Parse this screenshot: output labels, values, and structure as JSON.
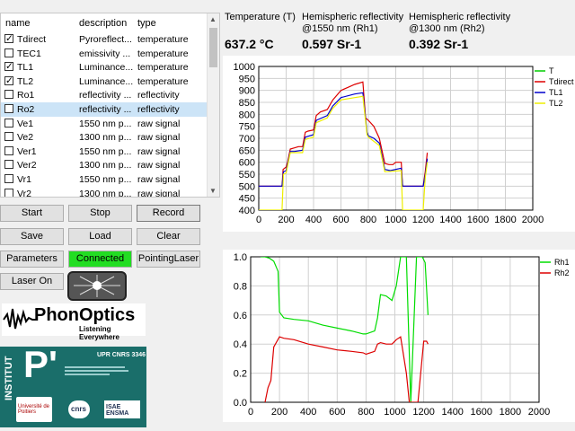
{
  "table": {
    "headers": {
      "name": "name",
      "description": "description",
      "type": "type"
    },
    "rows": [
      {
        "checked": true,
        "name": "Tdirect",
        "description": "Pyroreflect...",
        "type": "temperature"
      },
      {
        "checked": false,
        "name": "TEC1",
        "description": "emissivity ...",
        "type": "temperature"
      },
      {
        "checked": true,
        "name": "TL1",
        "description": "Luminance...",
        "type": "temperature"
      },
      {
        "checked": true,
        "name": "TL2",
        "description": "Luminance...",
        "type": "temperature"
      },
      {
        "checked": false,
        "name": "Ro1",
        "description": "reflectivity ...",
        "type": "reflectivity"
      },
      {
        "checked": false,
        "name": "Ro2",
        "description": "reflectivity ...",
        "type": "reflectivity"
      },
      {
        "checked": false,
        "name": "Ve1",
        "description": "1550 nm p...",
        "type": "raw signal"
      },
      {
        "checked": false,
        "name": "Ve2",
        "description": "1300 nm p...",
        "type": "raw signal"
      },
      {
        "checked": false,
        "name": "Ver1",
        "description": "1550 nm p...",
        "type": "raw signal"
      },
      {
        "checked": false,
        "name": "Ver2",
        "description": "1300 nm p...",
        "type": "raw signal"
      },
      {
        "checked": false,
        "name": "Vr1",
        "description": "1550 nm p...",
        "type": "raw signal"
      },
      {
        "checked": false,
        "name": "Vr2",
        "description": "1300 nm p...",
        "type": "raw signal"
      }
    ]
  },
  "buttons": {
    "start": "Start",
    "stop": "Stop",
    "record": "Record",
    "save": "Save",
    "load": "Load",
    "clear": "Clear",
    "parameters": "Parameters",
    "connected": "Connected",
    "pointing_laser": "PointingLaser",
    "laser_on": "Laser On"
  },
  "readouts": {
    "temperature": {
      "label": "Temperature (T)",
      "value": "637.2 °C"
    },
    "rh1": {
      "label1": "Hemispheric reflectivity",
      "label2": "@1550 nm (Rh1)",
      "value": "0.597 Sr-1"
    },
    "rh2": {
      "label1": "Hemispheric reflectivity",
      "label2": "@1300 nm (Rh2)",
      "value": "0.392 Sr-1"
    }
  },
  "logos": {
    "phonoptics": "PhonOptics",
    "phonoptics_tagline": "Listening Everywhere",
    "institut": "INSTITUT",
    "pprime": "P'",
    "upr": "UPR CNRS 3346",
    "univ": "Université de Poitiers",
    "cnrs": "cnrs",
    "isae": "ISAE ENSMA"
  },
  "colors": {
    "T": "#00cc00",
    "Tdirect": "#dd0000",
    "TL1": "#0000cc",
    "TL2": "#eeee00",
    "Rh1": "#00dd00",
    "Rh2": "#dd0000",
    "connected": "#22dd22"
  },
  "chart_data": [
    {
      "type": "line",
      "xlim": [
        0,
        2000
      ],
      "ylim": [
        400,
        1000
      ],
      "xticks": [
        0,
        200,
        400,
        600,
        800,
        1000,
        1200,
        1400,
        1600,
        1800,
        2000
      ],
      "yticks": [
        400,
        450,
        500,
        550,
        600,
        650,
        700,
        750,
        800,
        850,
        900,
        950,
        1000
      ],
      "legend_position": "top-right",
      "series": [
        {
          "name": "T",
          "color": "#00cc00",
          "points": []
        },
        {
          "name": "Tdirect",
          "color": "#dd0000",
          "points": [
            [
              0,
              500
            ],
            [
              170,
              500
            ],
            [
              178,
              570
            ],
            [
              200,
              580
            ],
            [
              210,
              600
            ],
            [
              230,
              655
            ],
            [
              260,
              660
            ],
            [
              290,
              665
            ],
            [
              320,
              665
            ],
            [
              340,
              725
            ],
            [
              360,
              730
            ],
            [
              400,
              735
            ],
            [
              420,
              795
            ],
            [
              450,
              810
            ],
            [
              500,
              820
            ],
            [
              540,
              860
            ],
            [
              600,
              900
            ],
            [
              660,
              915
            ],
            [
              700,
              925
            ],
            [
              760,
              935
            ],
            [
              780,
              785
            ],
            [
              800,
              775
            ],
            [
              840,
              750
            ],
            [
              880,
              700
            ],
            [
              920,
              595
            ],
            [
              950,
              590
            ],
            [
              980,
              590
            ],
            [
              1000,
              600
            ],
            [
              1040,
              600
            ],
            [
              1050,
              500
            ],
            [
              1200,
              500
            ],
            [
              1215,
              560
            ],
            [
              1230,
              640
            ]
          ]
        },
        {
          "name": "TL1",
          "color": "#0000cc",
          "points": [
            [
              0,
              500
            ],
            [
              170,
              500
            ],
            [
              180,
              560
            ],
            [
              200,
              565
            ],
            [
              230,
              645
            ],
            [
              260,
              645
            ],
            [
              320,
              650
            ],
            [
              340,
              705
            ],
            [
              400,
              715
            ],
            [
              420,
              775
            ],
            [
              500,
              795
            ],
            [
              540,
              835
            ],
            [
              600,
              870
            ],
            [
              700,
              885
            ],
            [
              760,
              890
            ],
            [
              790,
              725
            ],
            [
              800,
              710
            ],
            [
              840,
              700
            ],
            [
              880,
              680
            ],
            [
              920,
              570
            ],
            [
              960,
              565
            ],
            [
              1040,
              575
            ],
            [
              1050,
              500
            ],
            [
              1200,
              500
            ],
            [
              1215,
              545
            ],
            [
              1230,
              615
            ]
          ]
        },
        {
          "name": "TL2",
          "color": "#eeee00",
          "points": [
            [
              0,
              400
            ],
            [
              170,
              400
            ],
            [
              180,
              550
            ],
            [
              200,
              555
            ],
            [
              230,
              640
            ],
            [
              320,
              640
            ],
            [
              340,
              695
            ],
            [
              400,
              705
            ],
            [
              420,
              765
            ],
            [
              500,
              785
            ],
            [
              540,
              825
            ],
            [
              600,
              860
            ],
            [
              700,
              870
            ],
            [
              760,
              875
            ],
            [
              790,
              715
            ],
            [
              800,
              705
            ],
            [
              880,
              670
            ],
            [
              920,
              560
            ],
            [
              1040,
              565
            ],
            [
              1050,
              400
            ],
            [
              1200,
              400
            ],
            [
              1215,
              535
            ],
            [
              1230,
              600
            ]
          ]
        }
      ]
    },
    {
      "type": "line",
      "xlim": [
        0,
        2000
      ],
      "ylim": [
        0,
        1.0
      ],
      "xticks": [
        0,
        200,
        400,
        600,
        800,
        1000,
        1200,
        1400,
        1600,
        1800,
        2000
      ],
      "yticks": [
        0.0,
        0.2,
        0.4,
        0.6,
        0.8,
        1.0
      ],
      "legend_position": "top-right",
      "series": [
        {
          "name": "Rh1",
          "color": "#00dd00",
          "points": [
            [
              70,
              1.0
            ],
            [
              100,
              1.0
            ],
            [
              130,
              0.99
            ],
            [
              160,
              0.97
            ],
            [
              190,
              0.9
            ],
            [
              200,
              0.62
            ],
            [
              230,
              0.58
            ],
            [
              300,
              0.57
            ],
            [
              400,
              0.56
            ],
            [
              500,
              0.53
            ],
            [
              600,
              0.51
            ],
            [
              700,
              0.49
            ],
            [
              780,
              0.47
            ],
            [
              800,
              0.47
            ],
            [
              860,
              0.49
            ],
            [
              880,
              0.58
            ],
            [
              900,
              0.74
            ],
            [
              940,
              0.73
            ],
            [
              980,
              0.7
            ],
            [
              1010,
              0.8
            ],
            [
              1040,
              1.0
            ],
            [
              1080,
              1.0
            ],
            [
              1110,
              0.0
            ],
            [
              1150,
              1.0
            ],
            [
              1190,
              1.0
            ],
            [
              1210,
              0.96
            ],
            [
              1230,
              0.6
            ]
          ]
        },
        {
          "name": "Rh2",
          "color": "#dd0000",
          "points": [
            [
              100,
              0.0
            ],
            [
              120,
              0.1
            ],
            [
              140,
              0.15
            ],
            [
              160,
              0.38
            ],
            [
              200,
              0.45
            ],
            [
              230,
              0.44
            ],
            [
              300,
              0.43
            ],
            [
              400,
              0.4
            ],
            [
              500,
              0.38
            ],
            [
              600,
              0.36
            ],
            [
              700,
              0.35
            ],
            [
              780,
              0.34
            ],
            [
              800,
              0.33
            ],
            [
              860,
              0.35
            ],
            [
              880,
              0.4
            ],
            [
              900,
              0.41
            ],
            [
              940,
              0.4
            ],
            [
              980,
              0.4
            ],
            [
              1010,
              0.43
            ],
            [
              1040,
              0.45
            ],
            [
              1080,
              0.2
            ],
            [
              1100,
              0.0
            ],
            [
              1130,
              0.0
            ],
            [
              1160,
              0.0
            ],
            [
              1200,
              0.42
            ],
            [
              1220,
              0.42
            ],
            [
              1230,
              0.4
            ]
          ]
        }
      ]
    }
  ]
}
